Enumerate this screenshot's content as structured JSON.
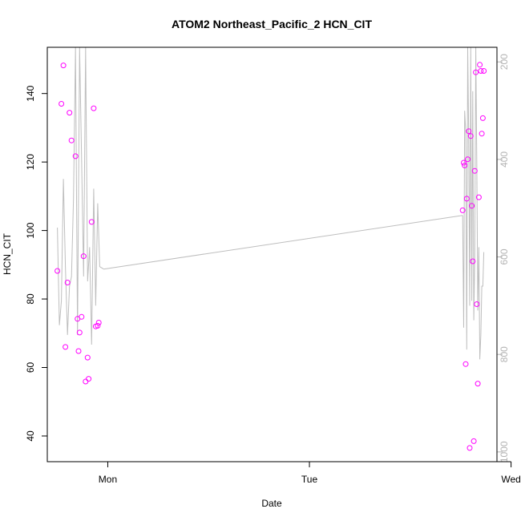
{
  "chart_data": {
    "type": "scatter",
    "title": "ATOM2 Northeast_Pacific_2 HCN_CIT",
    "xlabel": "Date",
    "ylabel": "HCN_CIT",
    "x_ticks": [
      "Mon",
      "Tue",
      "Wed"
    ],
    "y_ticks": [
      40,
      60,
      80,
      100,
      120,
      140
    ],
    "y2_ticks": [
      200,
      400,
      600,
      800,
      1000
    ],
    "ylim": [
      32.5,
      153.5
    ],
    "y2lim": [
      1020,
      170
    ],
    "grid": false,
    "colors": {
      "points": "#ff00ff",
      "line": "#bebebe",
      "right_axis": "#b3b3b3"
    },
    "series": [
      {
        "kind": "points",
        "x": [
          -0.25,
          -0.23,
          -0.22,
          -0.21,
          -0.2,
          -0.19,
          -0.18,
          -0.16,
          -0.15,
          -0.145,
          -0.14,
          -0.13,
          -0.12,
          -0.11,
          -0.1,
          -0.095,
          -0.08,
          -0.07,
          -0.06,
          -0.05,
          -0.045,
          1.76,
          1.765,
          1.77,
          1.775,
          1.78,
          1.785,
          1.79,
          1.795,
          1.8,
          1.805,
          1.81,
          1.815,
          1.82,
          1.825,
          1.83,
          1.835,
          1.84,
          1.845,
          1.85,
          1.855,
          1.86,
          1.865
        ],
        "y": [
          88.2,
          137.0,
          148.2,
          66.0,
          84.8,
          134.4,
          126.3,
          121.7,
          74.2,
          64.8,
          70.2,
          74.8,
          92.5,
          55.9,
          62.9,
          56.7,
          102.5,
          135.7,
          72.0,
          72.2,
          73.1,
          105.9,
          119.8,
          119.0,
          61.0,
          109.3,
          120.8,
          129.0,
          36.5,
          127.6,
          107.2,
          91.0,
          38.5,
          117.4,
          146.2,
          78.5,
          55.3,
          109.7,
          148.4,
          146.6,
          128.3,
          132.8,
          146.6
        ]
      },
      {
        "kind": "line",
        "x": [
          -0.25,
          -0.24,
          -0.23,
          -0.22,
          -0.21,
          -0.2,
          -0.19,
          -0.18,
          -0.17,
          -0.16,
          -0.15,
          -0.14,
          -0.13,
          -0.12,
          -0.11,
          -0.1,
          -0.09,
          -0.08,
          -0.07,
          -0.06,
          -0.05,
          -0.04,
          -0.02,
          1.76,
          1.765,
          1.77,
          1.775,
          1.78,
          1.785,
          1.79,
          1.795,
          1.8,
          1.805,
          1.81,
          1.815,
          1.82,
          1.825,
          1.83,
          1.835,
          1.84,
          1.845,
          1.85,
          1.855,
          1.86,
          1.865
        ],
        "y": [
          540,
          740,
          690,
          440,
          620,
          760,
          660,
          640,
          480,
          170,
          760,
          170,
          400,
          640,
          170,
          650,
          580,
          780,
          460,
          700,
          490,
          620,
          625,
          515,
          745,
          300,
          340,
          790,
          170,
          360,
          700,
          170,
          690,
          260,
          730,
          600,
          170,
          400,
          710,
          580,
          810,
          760,
          660,
          660,
          590
        ]
      }
    ]
  }
}
